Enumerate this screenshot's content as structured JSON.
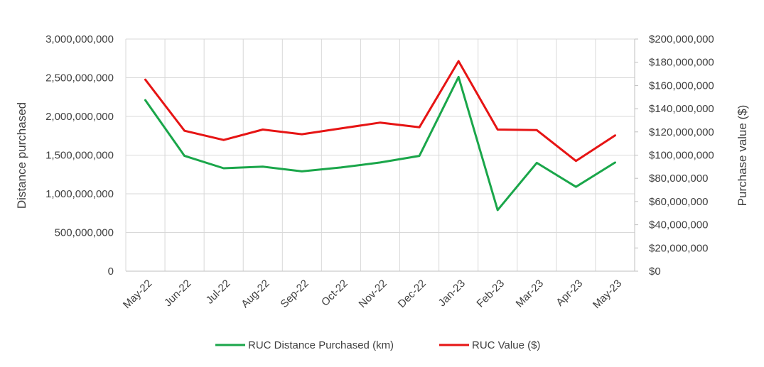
{
  "chart_data": {
    "type": "line",
    "categories": [
      "May-22",
      "Jun-22",
      "Jul-22",
      "Aug-22",
      "Sep-22",
      "Oct-22",
      "Nov-22",
      "Dec-22",
      "Jan-23",
      "Feb-23",
      "Mar-23",
      "Apr-23",
      "May-23"
    ],
    "series": [
      {
        "name": "RUC Distance Purchased (km)",
        "axis": "left",
        "color": "#1aa64a",
        "values": [
          2210000000,
          1490000000,
          1330000000,
          1350000000,
          1290000000,
          1340000000,
          1405000000,
          1490000000,
          2510000000,
          790000000,
          1400000000,
          1090000000,
          1405000000
        ]
      },
      {
        "name": "RUC Value ($)",
        "axis": "right",
        "color": "#e61414",
        "values": [
          165000000,
          121000000,
          113000000,
          122000000,
          118000000,
          123000000,
          128000000,
          124000000,
          181000000,
          122000000,
          121500000,
          95000000,
          117000000
        ]
      }
    ],
    "ylabel": "Distance purchased",
    "y2label": "Purchase value ($)",
    "ylim": [
      0,
      3000000000
    ],
    "y2lim": [
      0,
      200000000
    ],
    "yticks": [
      "0",
      "500,000,000",
      "1,000,000,000",
      "1,500,000,000",
      "2,000,000,000",
      "2,500,000,000",
      "3,000,000,000"
    ],
    "y2ticks": [
      "$0",
      "$20,000,000",
      "$40,000,000",
      "$60,000,000",
      "$80,000,000",
      "$100,000,000",
      "$120,000,000",
      "$140,000,000",
      "$160,000,000",
      "$180,000,000",
      "$200,000,000"
    ],
    "grid": true,
    "legend_position": "bottom"
  }
}
